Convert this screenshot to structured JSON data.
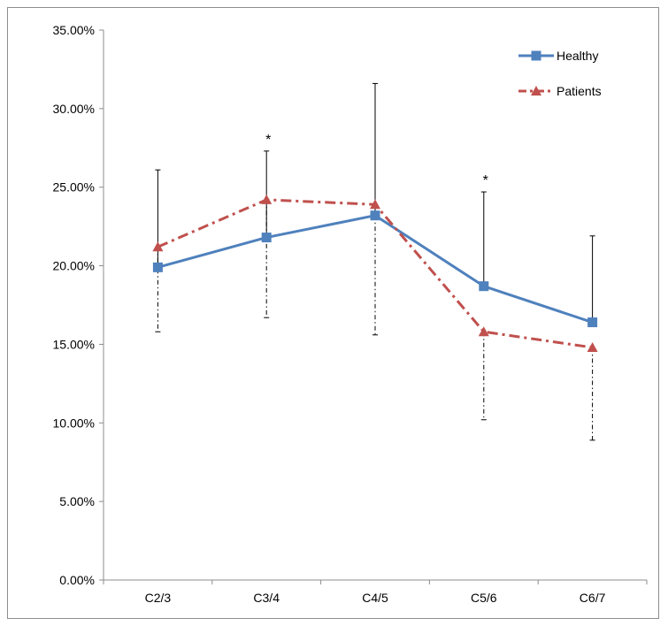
{
  "chart_data": {
    "type": "line",
    "categories": [
      "C2/3",
      "C3/4",
      "C4/5",
      "C5/6",
      "C6/7"
    ],
    "ylim": [
      0,
      35
    ],
    "yticks": [
      0,
      5,
      10,
      15,
      20,
      25,
      30,
      35
    ],
    "ytick_labels": [
      "0.00%",
      "5.00%",
      "10.00%",
      "15.00%",
      "20.00%",
      "25.00%",
      "30.00%",
      "35.00%"
    ],
    "grid": false,
    "legend_position": "top-right",
    "series": [
      {
        "name": "Healthy",
        "color": "#4f81bd",
        "marker": "square",
        "line_style": "solid",
        "values": [
          19.9,
          21.8,
          23.2,
          18.7,
          16.4
        ],
        "error_upper": [
          26.1,
          27.3,
          31.6,
          24.7,
          21.9
        ],
        "error_style": "solid"
      },
      {
        "name": "Patients",
        "color": "#c0504d",
        "marker": "triangle",
        "line_style": "dash-dot",
        "values": [
          21.2,
          24.2,
          23.9,
          15.8,
          14.8
        ],
        "error_lower": [
          15.8,
          16.7,
          15.6,
          10.2,
          8.9
        ],
        "error_style": "dash-dot"
      }
    ],
    "annotations": [
      {
        "category": "C3/4",
        "text": "*"
      },
      {
        "category": "C5/6",
        "text": "*"
      }
    ]
  }
}
